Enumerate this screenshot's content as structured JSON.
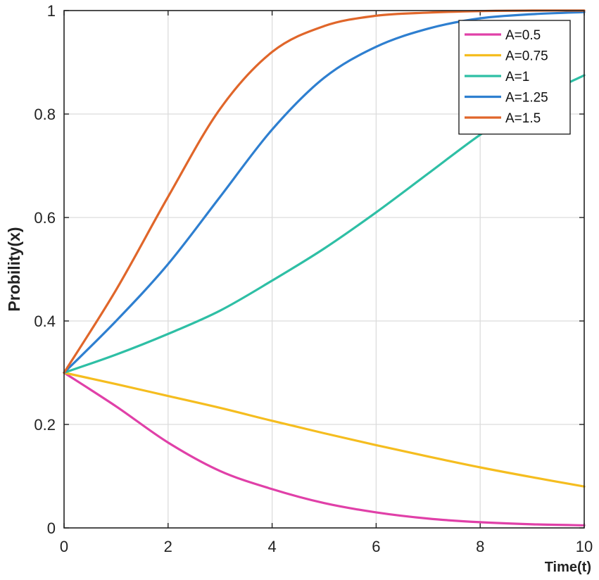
{
  "chart_data": {
    "type": "line",
    "xlabel": "Time(t)",
    "ylabel": "Probility(x)",
    "xlim": [
      0,
      10
    ],
    "ylim": [
      0,
      1
    ],
    "xticks": [
      0,
      2,
      4,
      6,
      8,
      10
    ],
    "yticks": [
      0,
      0.2,
      0.4,
      0.6,
      0.8,
      1
    ],
    "x_tick_labels": [
      "0",
      "2",
      "4",
      "6",
      "8",
      "10"
    ],
    "y_tick_labels": [
      "0",
      "0.2",
      "0.4",
      "0.6",
      "0.8",
      "1"
    ],
    "grid": true,
    "legend_position": "top-right",
    "x": [
      0,
      1,
      2,
      3,
      4,
      5,
      6,
      7,
      8,
      9,
      10
    ],
    "series": [
      {
        "name": "A=0.5",
        "color": "#e040a8",
        "values": [
          0.3,
          0.235,
          0.165,
          0.11,
          0.075,
          0.048,
          0.03,
          0.018,
          0.011,
          0.007,
          0.005
        ]
      },
      {
        "name": "A=0.75",
        "color": "#f5bd1f",
        "values": [
          0.3,
          0.278,
          0.255,
          0.232,
          0.207,
          0.183,
          0.16,
          0.138,
          0.117,
          0.098,
          0.08
        ]
      },
      {
        "name": "A=1",
        "color": "#2ebfa5",
        "values": [
          0.3,
          0.335,
          0.375,
          0.42,
          0.478,
          0.54,
          0.61,
          0.685,
          0.76,
          0.825,
          0.875
        ]
      },
      {
        "name": "A=1.25",
        "color": "#2e7fd0",
        "values": [
          0.3,
          0.4,
          0.51,
          0.64,
          0.77,
          0.87,
          0.93,
          0.965,
          0.985,
          0.993,
          0.997
        ]
      },
      {
        "name": "A=1.5",
        "color": "#e0662a",
        "values": [
          0.3,
          0.46,
          0.64,
          0.81,
          0.92,
          0.97,
          0.99,
          0.996,
          0.999,
          1.0,
          1.0
        ]
      }
    ]
  }
}
